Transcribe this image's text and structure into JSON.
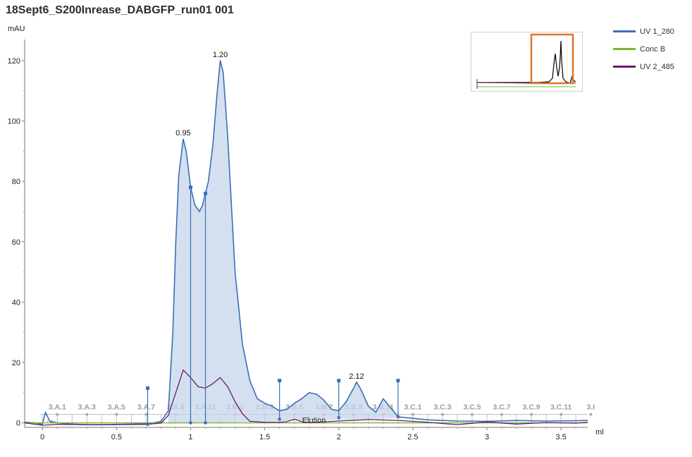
{
  "title": "18Sept6_S200Inrease_DABGFP_run01 001",
  "legend": [
    {
      "label": "UV 1_280",
      "color": "#3b6fb6"
    },
    {
      "label": "Conc B",
      "color": "#7ab82a"
    },
    {
      "label": "UV 2_485",
      "color": "#6a1a6a"
    }
  ],
  "chart_data": {
    "type": "line",
    "ylabel": "mAU",
    "xlabel": "ml",
    "xlim": [
      -0.12,
      3.68
    ],
    "ylim": [
      -1.5,
      127
    ],
    "x_ticks": [
      "0",
      "0.5",
      "1",
      "1.5",
      "2",
      "2.5",
      "3",
      "3.5"
    ],
    "x_tick_values": [
      0,
      0.5,
      1,
      1.5,
      2,
      2.5,
      3,
      3.5
    ],
    "y_ticks": [
      "0",
      "20",
      "40",
      "60",
      "80",
      "100",
      "120"
    ],
    "y_tick_values": [
      0,
      20,
      40,
      60,
      80,
      100,
      120
    ],
    "series": [
      {
        "name": "UV 1_280",
        "color": "#3b6fb6",
        "x": [
          -0.12,
          -0.05,
          0.0,
          0.02,
          0.05,
          0.1,
          0.2,
          0.3,
          0.4,
          0.5,
          0.6,
          0.7,
          0.75,
          0.8,
          0.85,
          0.88,
          0.9,
          0.92,
          0.95,
          0.97,
          1.0,
          1.03,
          1.06,
          1.08,
          1.1,
          1.12,
          1.15,
          1.18,
          1.2,
          1.22,
          1.25,
          1.28,
          1.3,
          1.35,
          1.4,
          1.45,
          1.5,
          1.55,
          1.6,
          1.65,
          1.7,
          1.75,
          1.8,
          1.85,
          1.9,
          1.95,
          2.0,
          2.05,
          2.1,
          2.12,
          2.15,
          2.2,
          2.25,
          2.3,
          2.35,
          2.4,
          2.5,
          2.6,
          2.7,
          2.8,
          3.0,
          3.2,
          3.4,
          3.6,
          3.68
        ],
        "y": [
          0.2,
          0.0,
          -0.5,
          3.5,
          0.5,
          0.0,
          -0.4,
          -0.6,
          -0.6,
          -0.5,
          -0.4,
          -0.2,
          0.0,
          0.5,
          4.0,
          30,
          60,
          82,
          94,
          90,
          78,
          72,
          70,
          72,
          76,
          80,
          92,
          110,
          120,
          116,
          95,
          68,
          50,
          26,
          14,
          8,
          6.5,
          5.5,
          4.0,
          4.5,
          6.5,
          8.0,
          10,
          9.5,
          7.5,
          4.5,
          4.0,
          7.0,
          11.5,
          13.5,
          11,
          5.5,
          3.5,
          8.0,
          5.0,
          2.0,
          1.5,
          1.0,
          0.8,
          0.6,
          0.5,
          0.8,
          0.6,
          0.7,
          0.8
        ]
      },
      {
        "name": "Conc B",
        "color": "#7ab82a",
        "x": [
          -0.12,
          3.68
        ],
        "y": [
          0.0,
          0.0
        ]
      },
      {
        "name": "UV 2_485",
        "color": "#6a1a6a",
        "x": [
          -0.12,
          0.0,
          0.1,
          0.3,
          0.5,
          0.7,
          0.8,
          0.85,
          0.9,
          0.95,
          1.0,
          1.05,
          1.1,
          1.15,
          1.2,
          1.25,
          1.3,
          1.35,
          1.4,
          1.5,
          1.6,
          1.65,
          1.7,
          1.75,
          1.8,
          2.0,
          2.2,
          2.4,
          2.6,
          2.8,
          3.0,
          3.2,
          3.4,
          3.6,
          3.68
        ],
        "y": [
          0.0,
          -0.8,
          -0.5,
          -0.6,
          -0.6,
          -0.5,
          -0.1,
          2.5,
          10,
          17.5,
          15,
          12,
          11.5,
          13,
          15,
          12,
          7,
          3,
          0.5,
          0.2,
          0.2,
          0.4,
          1.2,
          0.4,
          0.1,
          0.6,
          1.1,
          0.8,
          0.2,
          -0.6,
          0.3,
          -0.4,
          0.1,
          -0.1,
          0.2
        ]
      }
    ],
    "peak_labels": [
      {
        "label": "0.95",
        "x": 0.95,
        "y": 94
      },
      {
        "label": "1.20",
        "x": 1.2,
        "y": 120
      },
      {
        "label": "2.12",
        "x": 2.12,
        "y": 13.5
      }
    ],
    "integration_bounds": [
      {
        "x": 0.71,
        "y": 11.5,
        "low": -0.5
      },
      {
        "x": 1.0,
        "y": 78,
        "low": 0.0
      },
      {
        "x": 1.1,
        "y": 76,
        "low": 0.0
      },
      {
        "x": 1.6,
        "y": 14,
        "low": 1.2
      },
      {
        "x": 2.0,
        "y": 14,
        "low": 1.7
      },
      {
        "x": 2.4,
        "y": 14,
        "low": 2.0
      }
    ],
    "fractions": [
      {
        "label": "3.A.1",
        "x": 0.1
      },
      {
        "label": "3.A.3",
        "x": 0.3
      },
      {
        "label": "3.A.5",
        "x": 0.5
      },
      {
        "label": "3.A.7",
        "x": 0.7
      },
      {
        "label": "3.A.9",
        "x": 0.9
      },
      {
        "label": "3.A.11",
        "x": 1.1
      },
      {
        "label": "3.B.1",
        "x": 1.3
      },
      {
        "label": "3.B.3",
        "x": 1.5
      },
      {
        "label": "3.B.5",
        "x": 1.7
      },
      {
        "label": "3.B.7",
        "x": 1.9
      },
      {
        "label": "3.B.9",
        "x": 2.1
      },
      {
        "label": "3.B.11",
        "x": 2.3
      },
      {
        "label": "3.C.1",
        "x": 2.5
      },
      {
        "label": "3.C.3",
        "x": 2.7
      },
      {
        "label": "3.C.5",
        "x": 2.9
      },
      {
        "label": "3.C.7",
        "x": 3.1
      },
      {
        "label": "3.C.9",
        "x": 3.3
      },
      {
        "label": "3.C.11",
        "x": 3.5
      },
      {
        "label": "3.I",
        "x": 3.7
      }
    ],
    "event_text": "Elution",
    "event_x": 1.8,
    "small_marker_text": "..."
  }
}
